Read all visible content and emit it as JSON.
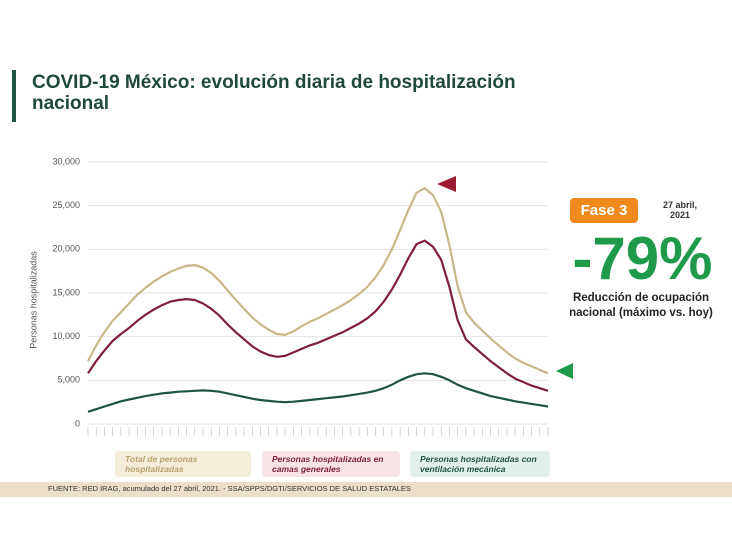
{
  "chart_data": {
    "type": "line",
    "title": "COVID-19 México: evolución diaria de hospitalización nacional",
    "y_label": "Personas hospitalizadas",
    "categories": [
      null,
      null,
      null,
      null,
      null,
      null,
      null,
      null,
      null,
      null,
      null,
      null,
      null,
      null,
      null,
      null,
      null,
      null,
      null,
      null,
      null,
      null,
      null,
      null,
      null,
      null,
      null,
      null,
      null,
      null,
      null,
      null,
      null,
      null,
      null,
      null,
      null,
      null,
      null,
      null,
      null,
      null,
      null,
      null,
      null,
      null,
      null,
      null,
      null,
      null,
      null,
      null,
      null,
      null,
      null,
      null,
      null
    ],
    "series": [
      {
        "name": "Total de personas hospitalizadas",
        "color": "#c8b88a",
        "values": [
          7200,
          9000,
          10500,
          11800,
          12800,
          13800,
          14800,
          15600,
          16300,
          16900,
          17400,
          17800,
          18100,
          18200,
          17900,
          17300,
          16400,
          15300,
          14200,
          13200,
          12200,
          11400,
          10800,
          10300,
          10200,
          10600,
          11200,
          11700,
          12100,
          12600,
          13100,
          13600,
          14200,
          14900,
          15700,
          16800,
          18200,
          20000,
          22200,
          24500,
          26500,
          27000,
          26200,
          24300,
          20500,
          15800,
          12800,
          11600,
          10700,
          9800,
          9000,
          8200,
          7500,
          7000,
          6600,
          6200,
          5800
        ]
      },
      {
        "name": "Personas hospitalizadas en camas generales",
        "color": "#7e1f3d",
        "values": [
          5800,
          7200,
          8400,
          9500,
          10300,
          11000,
          11800,
          12500,
          13100,
          13600,
          14000,
          14200,
          14300,
          14200,
          13800,
          13200,
          12400,
          11400,
          10500,
          9700,
          8900,
          8300,
          7900,
          7700,
          7800,
          8200,
          8600,
          9000,
          9300,
          9700,
          10100,
          10500,
          11000,
          11500,
          12100,
          12900,
          14000,
          15400,
          17100,
          19000,
          20600,
          21000,
          20300,
          18800,
          15700,
          11900,
          9700,
          8800,
          8000,
          7200,
          6500,
          5800,
          5200,
          4800,
          4400,
          4100,
          3800
        ]
      },
      {
        "name": "Personas hospitalizadas con ventilación mecánica",
        "color": "#1f5443",
        "values": [
          1400,
          1700,
          2000,
          2300,
          2600,
          2800,
          3000,
          3200,
          3350,
          3500,
          3600,
          3700,
          3750,
          3800,
          3850,
          3800,
          3700,
          3500,
          3300,
          3100,
          2900,
          2750,
          2650,
          2550,
          2500,
          2550,
          2650,
          2750,
          2850,
          2950,
          3050,
          3150,
          3300,
          3450,
          3600,
          3800,
          4100,
          4500,
          5000,
          5400,
          5700,
          5800,
          5700,
          5400,
          5000,
          4500,
          4100,
          3800,
          3500,
          3200,
          3000,
          2800,
          2600,
          2450,
          2300,
          2150,
          2000
        ]
      }
    ],
    "ylim": [
      0,
      30000
    ],
    "yticks": [
      0,
      {
        "value": 5000,
        "label": "5,000"
      },
      {
        "value": 10000,
        "label": "10,000"
      },
      {
        "value": 15000,
        "label": "15,000"
      },
      {
        "value": 20000,
        "label": "20,000"
      },
      {
        "value": 25000,
        "label": "25,000"
      },
      {
        "value": 30000,
        "label": "30,000"
      }
    ],
    "grid": true,
    "badge": "Fase 3",
    "date": "27 abril, 2021",
    "headline": "-79%",
    "headline_caption": "Reducción de ocupación nacional (máximo vs. hoy)",
    "source": "FUENTE: RED IRAG, acumulado del 27 abril, 2021.  -  SSA/SPPS/DGTI/SERVICIOS DE SALUD ESTATALES"
  }
}
